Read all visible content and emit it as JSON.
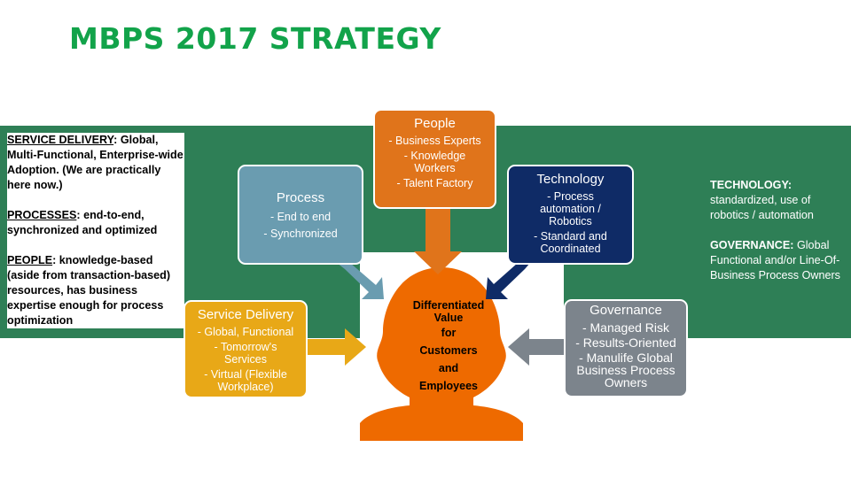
{
  "title": "MBPS 2017 STRATEGY",
  "left_notes": [
    {
      "heading": "SERVICE DELIVERY",
      "text": ":  Global, Multi-Functional, Enterprise-wide Adoption.   (We are practically here now.)"
    },
    {
      "heading": "PROCESSES",
      "text": ":  end-to-end, synchronized and optimized"
    },
    {
      "heading": "PEOPLE",
      "text": ":  knowledge-based (aside from transaction-based) resources, has business expertise enough for process optimization"
    }
  ],
  "right_notes": [
    {
      "heading": "TECHNOLOGY:",
      "text": " standardized, use of robotics / automation"
    },
    {
      "heading": "GOVERNANCE:",
      "text": " Global Functional and/or Line-Of-Business Process Owners"
    }
  ],
  "boxes": {
    "people": {
      "title": "People",
      "items": [
        "- Business Experts",
        "- Knowledge Workers",
        "- Talent Factory"
      ]
    },
    "process": {
      "title": "Process",
      "items": [
        "- End to end",
        "- Synchronized"
      ]
    },
    "technology": {
      "title": "Technology",
      "items": [
        "- Process automation / Robotics",
        "- Standard and Coordinated"
      ]
    },
    "service": {
      "title": "Service Delivery",
      "items": [
        "- Global, Functional",
        "- Tomorrow's Services",
        "- Virtual (Flexible Workplace)"
      ]
    },
    "governance": {
      "title": "Governance",
      "items": [
        "- Managed Risk",
        "- Results-Oriented",
        "- Manulife Global Business Process Owners"
      ]
    }
  },
  "center": {
    "line1": "Differentiated",
    "line2": "Value",
    "line3": "for",
    "line4": "Customers",
    "line5": "and",
    "line6": "Employees"
  },
  "colors": {
    "title_green": "#12a34a",
    "band_green": "#2e7f56",
    "people_orange": "#e0741b",
    "process_blue": "#6a9cb0",
    "technology_navy": "#0f2b66",
    "service_gold": "#e8a817",
    "governance_gray": "#7c848c",
    "head_orange": "#ee6a00"
  }
}
